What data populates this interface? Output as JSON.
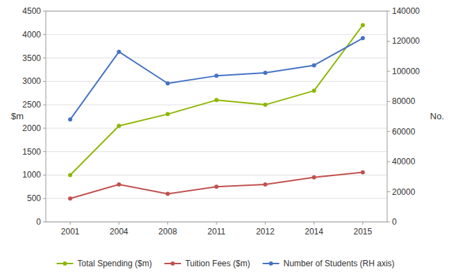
{
  "chart_data": {
    "type": "line",
    "categories": [
      2001,
      2004,
      2008,
      2011,
      2012,
      2014,
      2015
    ],
    "series": [
      {
        "name": "Total Spending ($m)",
        "color": "#8DB600",
        "values": [
          1000,
          2050,
          2300,
          2600,
          2500,
          2800,
          4200
        ]
      },
      {
        "name": "Tuition Fees ($m)",
        "color": "#C0504D",
        "values": [
          500,
          800,
          600,
          750,
          800,
          950,
          1060
        ]
      },
      {
        "name": "Number of Students (RH axis)",
        "color": "#4472C4",
        "values": [
          68000,
          113000,
          92000,
          97000,
          99000,
          104000,
          122000
        ],
        "axis": "y2"
      }
    ],
    "ylabel": "$m",
    "y2label": "No.",
    "ylim": [
      0,
      4500
    ],
    "yticks": [
      0,
      500,
      1000,
      1500,
      2000,
      2500,
      3000,
      3500,
      4000,
      4500
    ],
    "y2lim": [
      0,
      140000
    ],
    "y2ticks": [
      0,
      20000,
      40000,
      60000,
      80000,
      100000,
      120000,
      140000
    ],
    "grid": true,
    "legend": "bottom",
    "marker": "circle"
  }
}
